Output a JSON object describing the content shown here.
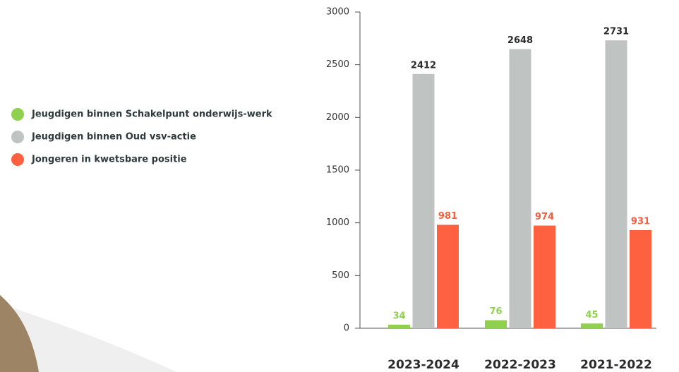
{
  "chart_data": {
    "type": "bar",
    "categories": [
      "2023-2024",
      "2022-2023",
      "2021-2022"
    ],
    "series": [
      {
        "name": "Jeugdigen binnen Schakelpunt onderwijs-werk",
        "color": "#8fd14f",
        "label_color": "#8fd14f",
        "values": [
          34,
          76,
          45
        ]
      },
      {
        "name": "Jeugdigen binnen Oud vsv-actie",
        "color": "#bfc3c2",
        "label_color": "#2b2b2b",
        "values": [
          2412,
          2648,
          2731
        ]
      },
      {
        "name": "Jongeren in kwetsbare positie",
        "color": "#fe6140",
        "label_color": "#f0603f",
        "values": [
          981,
          974,
          931
        ]
      }
    ],
    "ylim": [
      0,
      3000
    ],
    "yticks": [
      0,
      500,
      1000,
      1500,
      2000,
      2500,
      3000
    ],
    "legend": "left"
  }
}
